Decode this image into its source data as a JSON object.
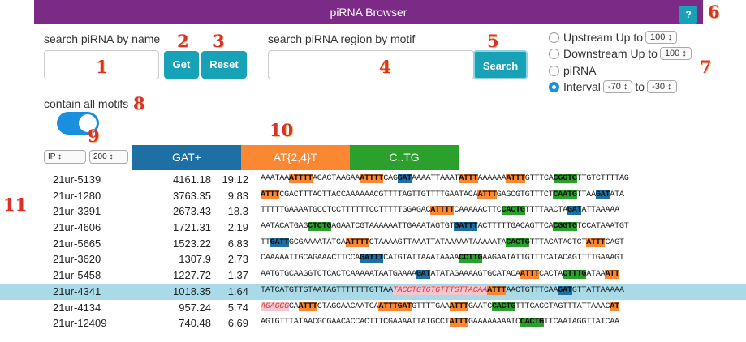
{
  "header": {
    "title": "piRNA Browser",
    "help": "?"
  },
  "markers": {
    "n1": "1",
    "n2": "2",
    "n3": "3",
    "n4": "4",
    "n5": "5",
    "n6": "6",
    "n7": "7",
    "n8": "8",
    "n9": "9",
    "n10": "10",
    "n11": "11"
  },
  "name_search": {
    "label": "search piRNA by name",
    "value": "",
    "get": "Get",
    "reset": "Reset"
  },
  "motif_search": {
    "label": "search piRNA region by motif",
    "value": "",
    "search": "Search"
  },
  "region": {
    "upstream": {
      "label": "Upstream Up to",
      "value": "100 ↕"
    },
    "downstream": {
      "label": "Downstream Up to",
      "value": "100 ↕"
    },
    "pirna": {
      "label": "piRNA"
    },
    "interval": {
      "label": "Interval",
      "from": "-70 ↕",
      "to_label": "to",
      "to": "-30 ↕"
    }
  },
  "contain_all": {
    "label": "contain all motifs",
    "on": true
  },
  "controls": {
    "sort": "IP ↕",
    "count": "200 ↕"
  },
  "motifs": [
    {
      "label": "GAT+",
      "color": "#1d6fa4"
    },
    {
      "label": "AT{2,4}T",
      "color": "#fb8732"
    },
    {
      "label": "C..TG",
      "color": "#2ca02c"
    }
  ],
  "rows": [
    {
      "id": "21ur-5139",
      "s1": "4161.18",
      "s2": "19.12",
      "seq": [
        [
          "AAATAA",
          ""
        ],
        [
          "ATTTT",
          "o"
        ],
        [
          "ACACTAAGAA",
          ""
        ],
        [
          "ATTTT",
          "o"
        ],
        [
          "CAG",
          ""
        ],
        [
          "GAT",
          "b"
        ],
        [
          "AAAATTAAAT",
          ""
        ],
        [
          "ATTT",
          "o"
        ],
        [
          "AAAAAA",
          ""
        ],
        [
          "ATTT",
          "o"
        ],
        [
          "GTTTCA",
          ""
        ],
        [
          "CGGTG",
          "g"
        ],
        [
          "TTGTCTTTTAG",
          ""
        ]
      ]
    },
    {
      "id": "21ur-1280",
      "s1": "3763.35",
      "s2": "9.83",
      "seq": [
        [
          "ATTT",
          "o"
        ],
        [
          "CGACTTTACTTACCAAAAAACGTTTTAGTTGTTTTGAATACA",
          ""
        ],
        [
          "ATTT",
          "o"
        ],
        [
          "GAGCGTGTTTCT",
          ""
        ],
        [
          "CAATG",
          "g"
        ],
        [
          "TTAA",
          ""
        ],
        [
          "GAT",
          "b"
        ],
        [
          "ATA",
          ""
        ]
      ]
    },
    {
      "id": "21ur-3391",
      "s1": "2673.43",
      "s2": "18.3",
      "seq": [
        [
          "TTTTTGAAAATGCCTCCTTTTTTCCTTTTTGGAGAC",
          ""
        ],
        [
          "ATTTT",
          "o"
        ],
        [
          "CAAAAACTTC",
          ""
        ],
        [
          "CACTG",
          "g"
        ],
        [
          "TTTTAACTA",
          ""
        ],
        [
          "GAT",
          "b"
        ],
        [
          "ATTAAAAA",
          ""
        ]
      ]
    },
    {
      "id": "21ur-4606",
      "s1": "1721.31",
      "s2": "2.19",
      "seq": [
        [
          "AATACATGAG",
          ""
        ],
        [
          "CTCTG",
          "g"
        ],
        [
          "AGAATCGTAAAAAATTGAAATAGTGT",
          ""
        ],
        [
          "GATTT",
          "b"
        ],
        [
          "ACTTTTTGACAGTTCA",
          ""
        ],
        [
          "CGGTG",
          "g"
        ],
        [
          "TCCATAAATGT",
          ""
        ]
      ]
    },
    {
      "id": "21ur-5665",
      "s1": "1523.22",
      "s2": "6.83",
      "seq": [
        [
          "TT",
          ""
        ],
        [
          "GATT",
          "b"
        ],
        [
          "GCGAAAATATCA",
          ""
        ],
        [
          "ATTTT",
          "o"
        ],
        [
          "CTAAAAGTTAAATTATAAAAATAAAAATA",
          ""
        ],
        [
          "CACTG",
          "g"
        ],
        [
          "TTTACATACTCT",
          ""
        ],
        [
          "ATTT",
          "o"
        ],
        [
          "CAGT",
          ""
        ]
      ]
    },
    {
      "id": "21ur-3620",
      "s1": "1307.9",
      "s2": "2.73",
      "seq": [
        [
          "CAAAAATTGCAGAAACTTCCA",
          ""
        ],
        [
          "GATTT",
          "b"
        ],
        [
          "CATGTATTAAATAAAA",
          ""
        ],
        [
          "CCTTG",
          "g"
        ],
        [
          "AAGAATATTGTTTCATACAGTTTTGAAAGT",
          ""
        ]
      ]
    },
    {
      "id": "21ur-5458",
      "s1": "1227.72",
      "s2": "1.37",
      "seq": [
        [
          "AATGTGCAAGGTCTCACTCAAAAATAATGAAAA",
          ""
        ],
        [
          "GAT",
          "b"
        ],
        [
          "ATATAGAAAAGTGCATACA",
          ""
        ],
        [
          "ATTT",
          "o"
        ],
        [
          "CACTA",
          ""
        ],
        [
          "CTTTG",
          "g"
        ],
        [
          "ATAA",
          ""
        ],
        [
          "ATT",
          "o"
        ]
      ]
    },
    {
      "id": "21ur-4341",
      "s1": "1018.35",
      "s2": "1.64",
      "hl": true,
      "seq": [
        [
          "TATCATGTTGTAATAGTTTTTTTGTTAA",
          ""
        ],
        [
          "TACCTGTGTGTTTGTTACAA",
          "p"
        ],
        [
          "ATTT",
          "o"
        ],
        [
          "AACTGTTTCAA",
          ""
        ],
        [
          "GAT",
          "b"
        ],
        [
          "GTTATTAAAAA",
          ""
        ]
      ]
    },
    {
      "id": "21ur-4134",
      "s1": "957.24",
      "s2": "5.74",
      "seq": [
        [
          "AGAGCG",
          "p"
        ],
        [
          "CA",
          ""
        ],
        [
          "ATTT",
          "o"
        ],
        [
          "CTAGCAACAATCA",
          ""
        ],
        [
          "ATTTGAT",
          "o"
        ],
        [
          "GTTTTGAA",
          ""
        ],
        [
          "ATTT",
          "o"
        ],
        [
          "GAATC",
          ""
        ],
        [
          "CACTG",
          "g"
        ],
        [
          "TTTCACCTAGTTTATTAAAC",
          ""
        ],
        [
          "AT",
          "o"
        ]
      ]
    },
    {
      "id": "21ur-12409",
      "s1": "740.48",
      "s2": "6.69",
      "seq": [
        [
          "AGTGTTTATAACGCGAACACCACTTTCGAAAATTATGCCT",
          ""
        ],
        [
          "ATTT",
          "o"
        ],
        [
          "GAAAAAAAATC",
          ""
        ],
        [
          "CACTG",
          "g"
        ],
        [
          "TTCAATAGGTTATCAA",
          ""
        ]
      ]
    }
  ]
}
